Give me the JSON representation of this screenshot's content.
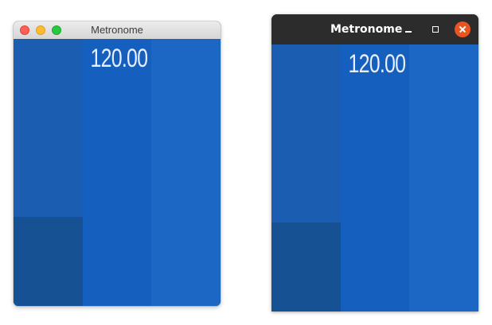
{
  "mac_window": {
    "title": "Metronome",
    "bpm_display": "120.00",
    "controls": [
      "close-button",
      "minimize-button",
      "zoom-button"
    ]
  },
  "ubuntu_window": {
    "title": "Metronome",
    "bpm_display": "120.00",
    "controls": [
      "minimize-button",
      "maximize-button",
      "close-button"
    ]
  },
  "colors": {
    "panel_left": "#1b5db1",
    "panel_left_lower": "#165194",
    "panel_middle": "#155fbe",
    "panel_right": "#1d67c4",
    "ubuntu_titlebar": "#2c2c2c",
    "ubuntu_close": "#e95420",
    "mac_close": "#fe5f57",
    "mac_minimize": "#febc2e",
    "mac_zoom": "#28c840"
  }
}
